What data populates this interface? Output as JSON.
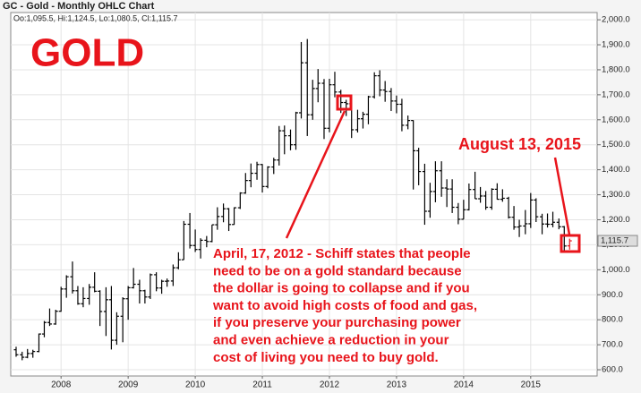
{
  "chart_data": {
    "type": "ohlc",
    "title": "GC - Gold - Monthly OHLC Chart",
    "subtitle": "Oo:1,095.5, Hi:1,124.5, Lo:1,080.5, Cl:1,115.7",
    "last_price_label": "1,115.7",
    "annotations": {
      "heading": "GOLD",
      "date_note": "August 13, 2015",
      "quote_lines": [
        "April, 17, 2012 - Schiff states that people",
        "need to be on a gold standard because",
        "the dollar is going to collapse and if you",
        "want to avoid high costs of food and gas,",
        "if you preserve your purchasing power",
        "and even achieve a reduction in your",
        "cost of living you need to buy gold."
      ]
    },
    "x": [
      2007.33,
      2007.42,
      2007.5,
      2007.58,
      2007.67,
      2007.75,
      2007.83,
      2007.92,
      2008,
      2008.08,
      2008.17,
      2008.25,
      2008.33,
      2008.42,
      2008.5,
      2008.58,
      2008.67,
      2008.75,
      2008.83,
      2008.92,
      2009,
      2009.08,
      2009.17,
      2009.25,
      2009.33,
      2009.42,
      2009.5,
      2009.58,
      2009.67,
      2009.75,
      2009.83,
      2009.92,
      2010,
      2010.08,
      2010.17,
      2010.25,
      2010.33,
      2010.42,
      2010.5,
      2010.58,
      2010.67,
      2010.75,
      2010.83,
      2010.92,
      2011,
      2011.08,
      2011.17,
      2011.25,
      2011.33,
      2011.42,
      2011.5,
      2011.58,
      2011.67,
      2011.75,
      2011.83,
      2011.92,
      2012,
      2012.08,
      2012.17,
      2012.25,
      2012.33,
      2012.42,
      2012.5,
      2012.58,
      2012.67,
      2012.75,
      2012.83,
      2012.92,
      2013,
      2013.08,
      2013.17,
      2013.25,
      2013.33,
      2013.42,
      2013.5,
      2013.58,
      2013.67,
      2013.75,
      2013.83,
      2013.92,
      2014,
      2014.08,
      2014.17,
      2014.25,
      2014.33,
      2014.42,
      2014.5,
      2014.58,
      2014.67,
      2014.75,
      2014.83,
      2014.92,
      2015,
      2015.08,
      2015.17,
      2015.25,
      2015.33,
      2015.42,
      2015.5,
      2015.58
    ],
    "open": [
      680,
      660,
      650,
      665,
      673,
      743,
      789,
      783,
      834,
      923,
      972,
      916,
      864,
      885,
      930,
      914,
      833,
      880,
      718,
      814,
      884,
      928,
      942,
      916,
      891,
      980,
      927,
      954,
      955,
      1008,
      1040,
      1182,
      1097,
      1081,
      1118,
      1113,
      1180,
      1213,
      1244,
      1181,
      1248,
      1307,
      1357,
      1386,
      1421,
      1333,
      1411,
      1439,
      1556,
      1536,
      1500,
      1628,
      1828,
      1620,
      1725,
      1746,
      1566,
      1740,
      1711,
      1669,
      1664,
      1560,
      1604,
      1622,
      1692,
      1776,
      1719,
      1713,
      1675,
      1662,
      1578,
      1597,
      1476,
      1393,
      1234,
      1313,
      1396,
      1327,
      1323,
      1250,
      1202,
      1240,
      1321,
      1284,
      1295,
      1250,
      1322,
      1282,
      1286,
      1210,
      1171,
      1175,
      1184,
      1279,
      1212,
      1183,
      1182,
      1190,
      1172,
      1095.5
    ],
    "high": [
      692,
      672,
      683,
      680,
      745,
      795,
      845,
      840,
      932,
      978,
      1033,
      935,
      930,
      943,
      990,
      918,
      930,
      935,
      830,
      890,
      935,
      1007,
      960,
      920,
      985,
      990,
      960,
      965,
      1021,
      1070,
      1195,
      1227,
      1161,
      1126,
      1135,
      1180,
      1250,
      1265,
      1247,
      1250,
      1310,
      1387,
      1425,
      1432,
      1423,
      1414,
      1448,
      1575,
      1577,
      1561,
      1632,
      1911,
      1923,
      1760,
      1803,
      1763,
      1764,
      1792,
      1720,
      1680,
      1670,
      1640,
      1632,
      1696,
      1790,
      1798,
      1755,
      1727,
      1697,
      1684,
      1617,
      1598,
      1488,
      1424,
      1348,
      1434,
      1434,
      1362,
      1362,
      1267,
      1280,
      1345,
      1392,
      1331,
      1315,
      1326,
      1346,
      1322,
      1292,
      1255,
      1200,
      1239,
      1307,
      1286,
      1224,
      1225,
      1232,
      1205,
      1175,
      1124.5
    ],
    "low": [
      652,
      638,
      646,
      648,
      670,
      730,
      775,
      780,
      832,
      888,
      905,
      860,
      850,
      860,
      910,
      775,
      735,
      681,
      700,
      710,
      800,
      925,
      865,
      865,
      883,
      914,
      904,
      932,
      935,
      1002,
      1040,
      1085,
      1071,
      1045,
      1090,
      1110,
      1160,
      1190,
      1155,
      1180,
      1243,
      1304,
      1330,
      1360,
      1309,
      1326,
      1383,
      1417,
      1462,
      1478,
      1480,
      1605,
      1535,
      1600,
      1670,
      1523,
      1550,
      1690,
      1627,
      1615,
      1527,
      1549,
      1565,
      1582,
      1685,
      1694,
      1672,
      1635,
      1626,
      1554,
      1562,
      1321,
      1338,
      1180,
      1208,
      1270,
      1292,
      1251,
      1227,
      1182,
      1202,
      1237,
      1284,
      1268,
      1240,
      1240,
      1281,
      1272,
      1205,
      1160,
      1131,
      1142,
      1167,
      1191,
      1142,
      1169,
      1170,
      1162,
      1072,
      1080.5
    ],
    "close": [
      660,
      650,
      665,
      673,
      743,
      789,
      783,
      834,
      923,
      972,
      916,
      864,
      885,
      930,
      914,
      833,
      880,
      718,
      814,
      884,
      928,
      942,
      916,
      891,
      980,
      927,
      954,
      955,
      1008,
      1040,
      1182,
      1097,
      1081,
      1118,
      1113,
      1180,
      1213,
      1244,
      1181,
      1248,
      1307,
      1357,
      1386,
      1421,
      1333,
      1411,
      1439,
      1556,
      1536,
      1500,
      1628,
      1828,
      1620,
      1725,
      1746,
      1566,
      1740,
      1711,
      1669,
      1664,
      1560,
      1604,
      1622,
      1692,
      1776,
      1719,
      1713,
      1675,
      1662,
      1578,
      1597,
      1476,
      1393,
      1234,
      1313,
      1396,
      1327,
      1323,
      1250,
      1202,
      1240,
      1321,
      1284,
      1295,
      1250,
      1322,
      1282,
      1286,
      1210,
      1171,
      1175,
      1184,
      1279,
      1212,
      1183,
      1182,
      1190,
      1172,
      1095,
      1115.7
    ],
    "color": "#000000",
    "highlight_color": "#e8141b",
    "xlim": [
      2007.25,
      2015.99
    ],
    "xticks": [
      2008,
      2009,
      2010,
      2011,
      2012,
      2013,
      2014,
      2015
    ],
    "ylim": [
      575,
      2029
    ],
    "yticks": [
      {
        "value": 600,
        "label": "600.0"
      },
      {
        "value": 700,
        "label": "700.0"
      },
      {
        "value": 800,
        "label": "800.0"
      },
      {
        "value": 900,
        "label": "900.0"
      },
      {
        "value": 1000,
        "label": "1,000.0"
      },
      {
        "value": 1100,
        "label": "1,100.0"
      },
      {
        "value": 1200,
        "label": "1,200.0"
      },
      {
        "value": 1300,
        "label": "1,300.0"
      },
      {
        "value": 1400,
        "label": "1,400.0"
      },
      {
        "value": 1500,
        "label": "1,500.0"
      },
      {
        "value": 1600,
        "label": "1,600.0"
      },
      {
        "value": 1700,
        "label": "1,700.0"
      },
      {
        "value": 1800,
        "label": "1,800.0"
      },
      {
        "value": 1900,
        "label": "1,900.0"
      },
      {
        "value": 2000,
        "label": "2,000.0"
      }
    ],
    "grid": true
  }
}
